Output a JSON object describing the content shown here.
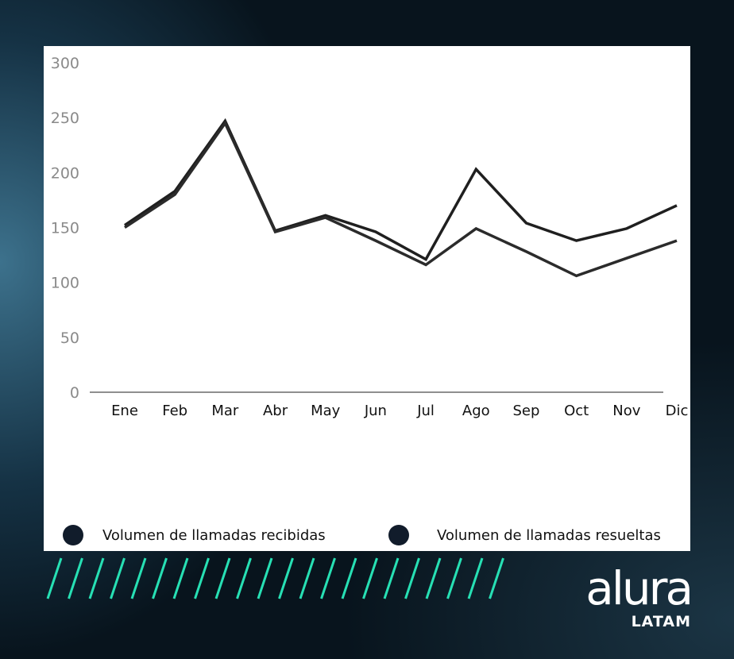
{
  "chart_data": {
    "type": "line",
    "categories": [
      "Ene",
      "Feb",
      "Mar",
      "Abr",
      "May",
      "Jun",
      "Jul",
      "Ago",
      "Sep",
      "Oct",
      "Nov",
      "Dic"
    ],
    "series": [
      {
        "name": "Volumen de llamadas recibidas",
        "values": [
          152,
          183,
          247,
          147,
          161,
          146,
          121,
          203,
          154,
          138,
          149,
          170
        ],
        "color": "#1f1f1f"
      },
      {
        "name": "Volumen de llamadas resueltas",
        "values": [
          150,
          180,
          245,
          146,
          159,
          138,
          116,
          149,
          128,
          106,
          122,
          138
        ],
        "color": "#2b2b2b"
      }
    ],
    "yticks": [
      0,
      50,
      100,
      150,
      200,
      250,
      300
    ],
    "ylim": [
      0,
      300
    ],
    "grid": false,
    "legend_position": "bottom",
    "legend_marker_color": "#111c2b"
  },
  "branding": {
    "logo_word": "alura",
    "logo_sub": "LATAM",
    "stripe_color": "#27e0b4"
  }
}
